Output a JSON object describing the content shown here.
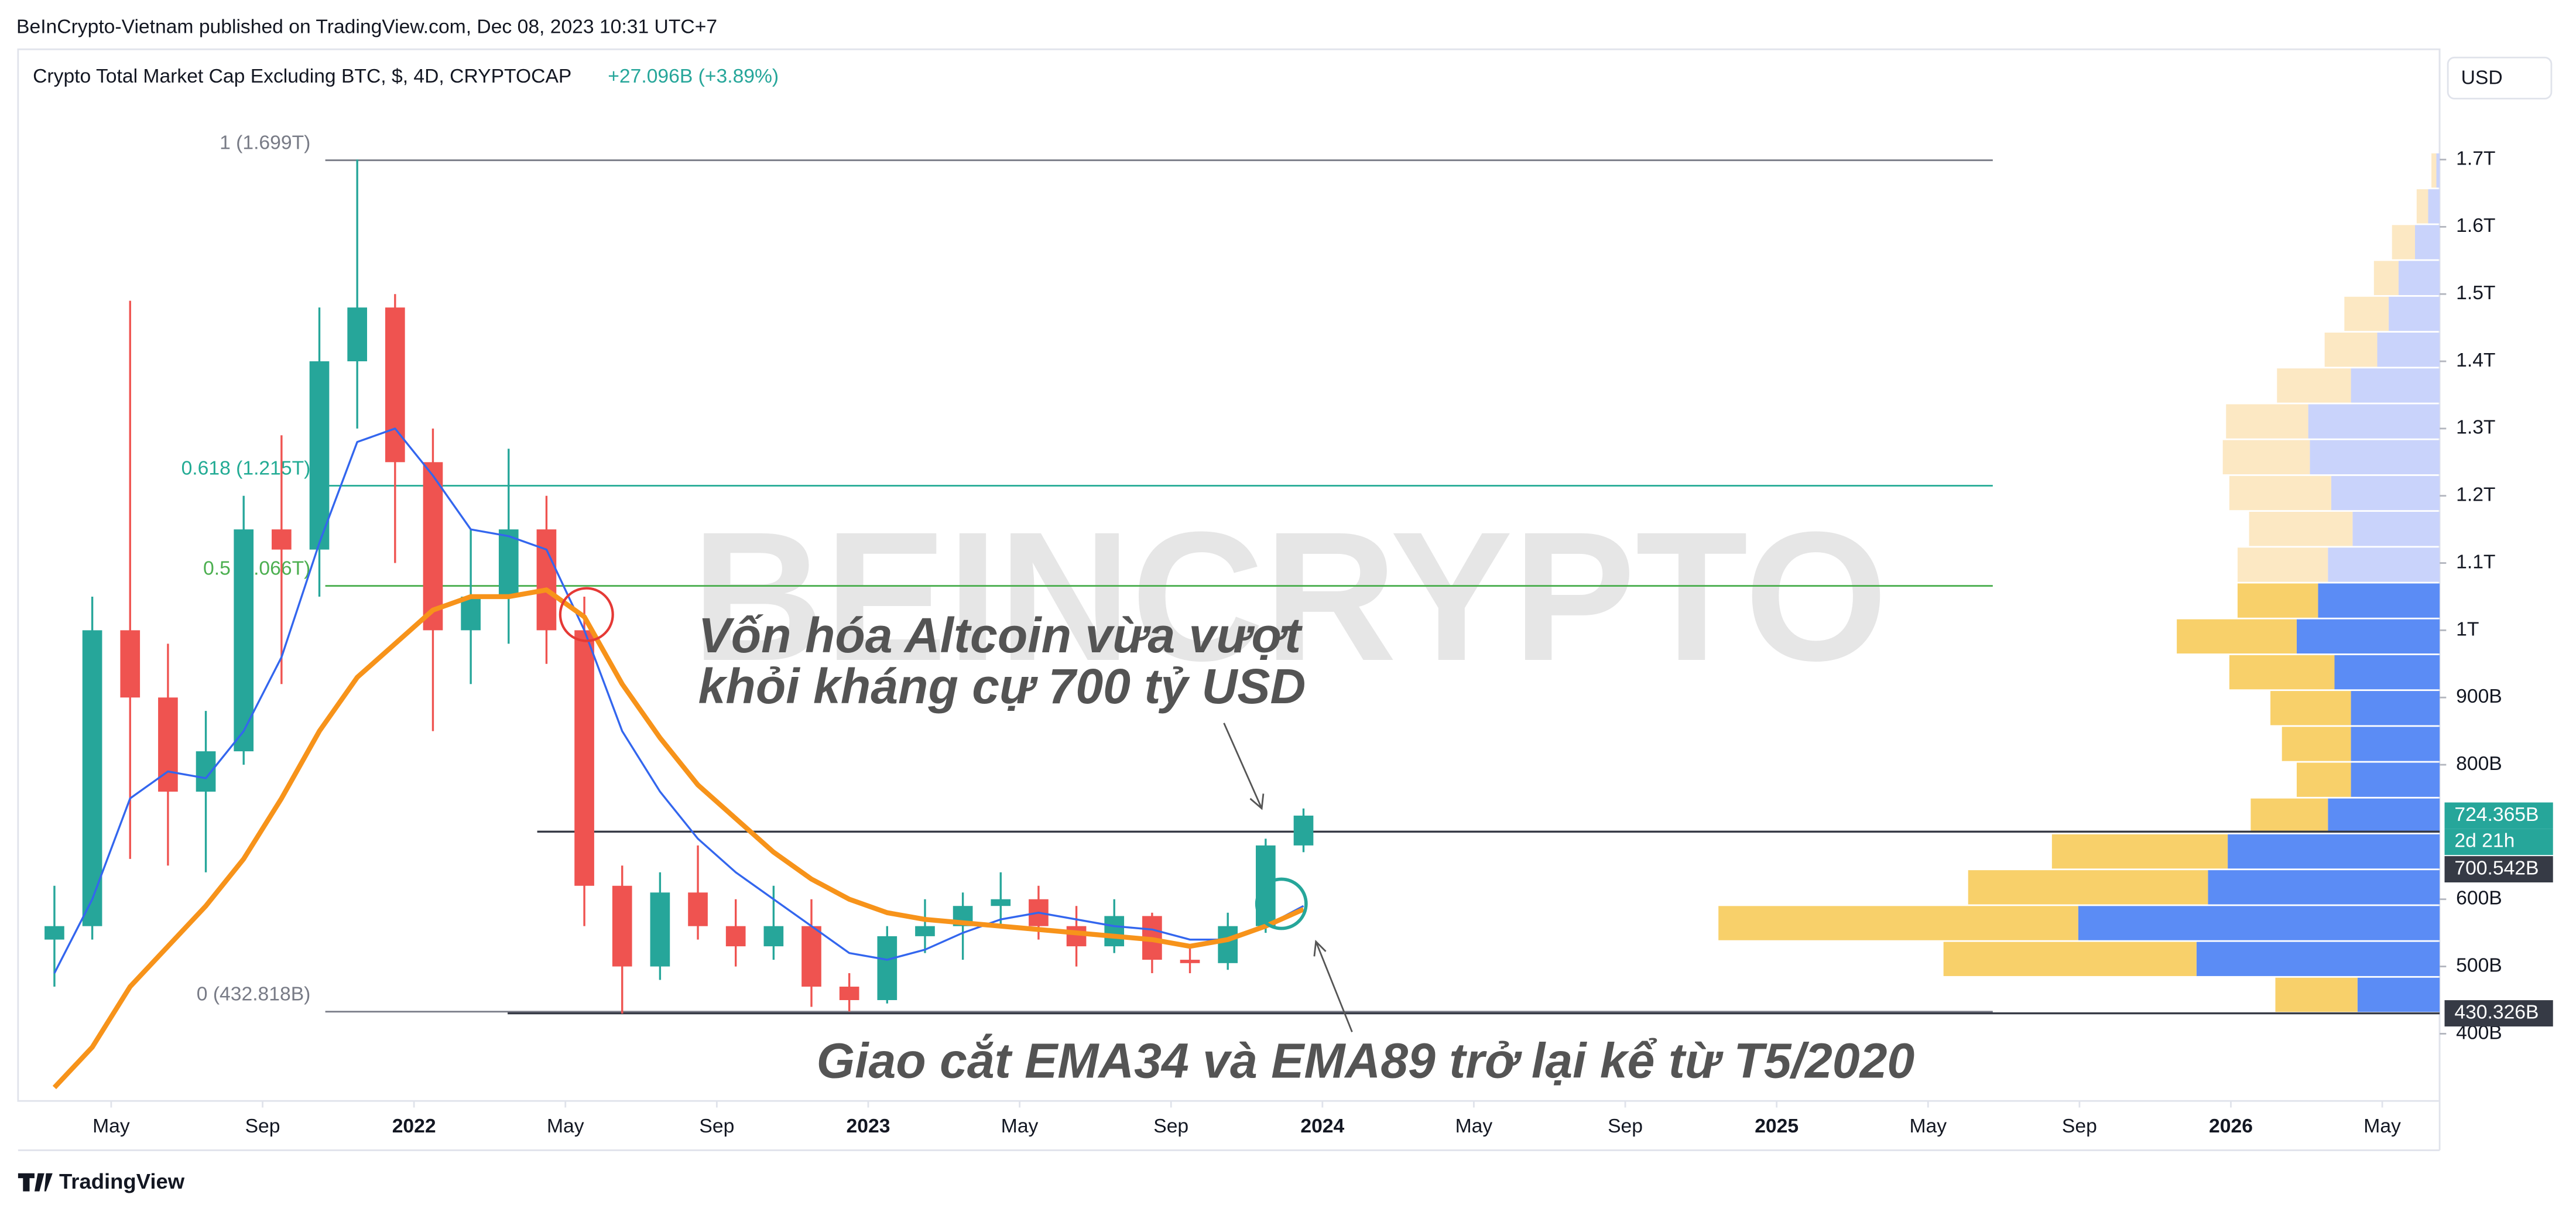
{
  "header": {
    "published": "BeInCrypto-Vietnam published on TradingView.com, Dec 08, 2023 10:31 UTC+7",
    "symbol": "Crypto Total Market Cap Excluding BTC, $, 4D, CRYPTOCAP",
    "change": "+27.096B (+3.89%)",
    "currency": "USD"
  },
  "footer": {
    "brand": "TradingView"
  },
  "chart_data": {
    "type": "candlestick",
    "x": [
      "2021-03",
      "2021-04",
      "2021-05",
      "2021-06",
      "2021-07",
      "2021-08",
      "2021-09",
      "2021-10",
      "2021-11",
      "2021-12",
      "2022-01",
      "2022-02",
      "2022-03",
      "2022-04",
      "2022-05",
      "2022-06",
      "2022-07",
      "2022-08",
      "2022-09",
      "2022-10",
      "2022-11",
      "2022-12",
      "2023-01",
      "2023-02",
      "2023-03",
      "2023-04",
      "2023-05",
      "2023-06",
      "2023-07",
      "2023-08",
      "2023-09",
      "2023-10",
      "2023-11",
      "2023-12"
    ],
    "open": [
      540,
      560,
      1000,
      900,
      760,
      820,
      1150,
      1120,
      1400,
      1480,
      1250,
      1000,
      1050,
      1150,
      1000,
      620,
      500,
      610,
      560,
      530,
      560,
      470,
      450,
      545,
      560,
      590,
      600,
      560,
      530,
      575,
      510,
      505,
      560,
      680
    ],
    "high": [
      620,
      1050,
      1490,
      980,
      880,
      1200,
      1290,
      1480,
      1700,
      1500,
      1300,
      1150,
      1270,
      1200,
      1050,
      650,
      640,
      680,
      600,
      620,
      600,
      490,
      560,
      600,
      610,
      640,
      620,
      590,
      600,
      580,
      530,
      580,
      690,
      735
    ],
    "low": [
      470,
      540,
      660,
      650,
      640,
      800,
      920,
      1050,
      1300,
      1100,
      850,
      920,
      980,
      950,
      560,
      430,
      480,
      540,
      500,
      510,
      440,
      433,
      445,
      520,
      510,
      560,
      540,
      500,
      520,
      490,
      490,
      495,
      550,
      670
    ],
    "close": [
      560,
      1000,
      900,
      760,
      820,
      1150,
      1120,
      1400,
      1480,
      1250,
      1000,
      1050,
      1150,
      1000,
      620,
      500,
      610,
      560,
      530,
      560,
      470,
      450,
      545,
      560,
      590,
      600,
      560,
      530,
      575,
      510,
      505,
      560,
      680,
      724.365
    ],
    "up_color": "#26a69a",
    "down_color": "#ef5350",
    "series": [
      {
        "color": "#3366ee",
        "values": [
          490,
          600,
          750,
          790,
          780,
          850,
          960,
          1130,
          1280,
          1300,
          1230,
          1150,
          1140,
          1120,
          1000,
          850,
          760,
          690,
          640,
          600,
          560,
          520,
          510,
          525,
          550,
          570,
          580,
          570,
          560,
          555,
          540,
          540,
          560,
          590
        ]
      },
      {
        "color": "#f7931a",
        "values": [
          320,
          380,
          470,
          530,
          590,
          660,
          750,
          850,
          930,
          980,
          1030,
          1050,
          1050,
          1060,
          1020,
          920,
          840,
          770,
          720,
          670,
          630,
          600,
          580,
          570,
          565,
          560,
          555,
          550,
          545,
          540,
          530,
          540,
          560,
          585
        ]
      }
    ],
    "ylim": [
      300,
      1864
    ],
    "yticks": [
      {
        "value": 400,
        "label": "400B"
      },
      {
        "value": 500,
        "label": "500B"
      },
      {
        "value": 600,
        "label": "600B"
      },
      {
        "value": 800,
        "label": "800B"
      },
      {
        "value": 900,
        "label": "900B"
      },
      {
        "value": 1000,
        "label": "1T"
      },
      {
        "value": 1100,
        "label": "1.1T"
      },
      {
        "value": 1200,
        "label": "1.2T"
      },
      {
        "value": 1300,
        "label": "1.3T"
      },
      {
        "value": 1400,
        "label": "1.4T"
      },
      {
        "value": 1500,
        "label": "1.5T"
      },
      {
        "value": 1600,
        "label": "1.6T"
      },
      {
        "value": 1700,
        "label": "1.7T"
      }
    ],
    "xticks": [
      {
        "value": "2021-05",
        "label": "May"
      },
      {
        "value": "2021-09",
        "label": "Sep"
      },
      {
        "value": "2022-01",
        "label": "2022"
      },
      {
        "value": "2022-05",
        "label": "May"
      },
      {
        "value": "2022-09",
        "label": "Sep"
      },
      {
        "value": "2023-01",
        "label": "2023"
      },
      {
        "value": "2023-05",
        "label": "May"
      },
      {
        "value": "2023-09",
        "label": "Sep"
      },
      {
        "value": "2024-01",
        "label": "2024"
      },
      {
        "value": "2024-05",
        "label": "May"
      },
      {
        "value": "2024-09",
        "label": "Sep"
      },
      {
        "value": "2025-01",
        "label": "2025"
      },
      {
        "value": "2025-05",
        "label": "May"
      },
      {
        "value": "2025-09",
        "label": "Sep"
      },
      {
        "value": "2026-01",
        "label": "2026"
      },
      {
        "value": "2026-05",
        "label": "May"
      }
    ],
    "fib_levels": [
      {
        "value": 1699,
        "label": "1 (1.699T)",
        "color": "#787b86"
      },
      {
        "value": 1215,
        "label": "0.618 (1.215T)",
        "color": "#22ab94"
      },
      {
        "value": 1066,
        "label": "0.5 (1.066T)",
        "color": "#4caf50"
      },
      {
        "value": 432.818,
        "label": "0 (432.818B)",
        "color": "#787b86"
      }
    ],
    "price_labels": [
      {
        "value": 724.365,
        "label": "724.365B",
        "color": "#26a69a"
      },
      {
        "value": 700.542,
        "label": "700.542B",
        "color": "#363a45"
      },
      {
        "value": 430.326,
        "label": "430.326B",
        "color": "#363a45"
      }
    ],
    "countdown": "2d 21h",
    "annotations": [
      "Vốn hóa Altcoin vừa vượt",
      "khỏi kháng cự 700 tỷ USD",
      "Giao cắt EMA34 và EMA89 trở lại kể từ T5/2020"
    ],
    "watermark": "BEINCRYPTO",
    "volume_profile": {
      "start": 430,
      "step": 53.3,
      "value_area_high": 1065,
      "up": [
        50,
        148,
        220,
        141,
        129,
        68,
        54,
        54,
        54,
        64,
        87,
        74,
        68,
        53,
        66,
        79,
        80,
        54,
        38,
        31,
        25,
        15,
        7,
        2
      ],
      "down": [
        50,
        154,
        219,
        146,
        107,
        47,
        33,
        42,
        49,
        64,
        73,
        49,
        55,
        63,
        62,
        53,
        50,
        45,
        32,
        27,
        15,
        14,
        7,
        3
      ]
    }
  }
}
